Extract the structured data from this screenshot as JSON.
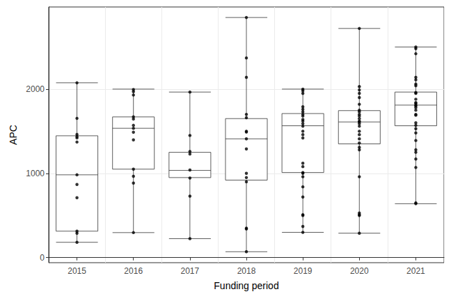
{
  "chart_data": {
    "type": "boxplot",
    "xlabel": "Funding period",
    "ylabel": "APC",
    "categories": [
      "2015",
      "2016",
      "2017",
      "2018",
      "2019",
      "2020",
      "2021"
    ],
    "boxes": [
      [
        182,
        314,
        983,
        1446,
        2075
      ],
      [
        297,
        1050,
        1535,
        1670,
        2000
      ],
      [
        225,
        950,
        1035,
        1250,
        1965
      ],
      [
        70,
        920,
        1410,
        1650,
        2850
      ],
      [
        300,
        1010,
        1565,
        1710,
        2000
      ],
      [
        290,
        1350,
        1610,
        1745,
        2720
      ],
      [
        640,
        1565,
        1810,
        1965,
        2500
      ]
    ],
    "points": [
      [
        2075,
        1653,
        1463,
        1438,
        1421,
        1372,
        983,
        868,
        711,
        314,
        289,
        182
      ],
      [
        1995,
        1970,
        1930,
        1670,
        1645,
        1570,
        1535,
        1488,
        1397,
        1050,
        965,
        885,
        297
      ],
      [
        1965,
        1450,
        1260,
        1230,
        1040,
        945,
        730,
        225
      ],
      [
        2850,
        2370,
        2140,
        1700,
        1660,
        1500,
        1490,
        1410,
        1290,
        1000,
        950,
        900,
        350,
        340,
        70
      ],
      [
        2000,
        1980,
        1950,
        1790,
        1760,
        1730,
        1700,
        1680,
        1640,
        1620,
        1590,
        1560,
        1500,
        1460,
        1420,
        1120,
        1080,
        1010,
        1000,
        960,
        840,
        720,
        510,
        500,
        370,
        300
      ],
      [
        2720,
        2030,
        1990,
        1950,
        1900,
        1820,
        1750,
        1730,
        1700,
        1680,
        1650,
        1620,
        1610,
        1590,
        1560,
        1500,
        1460,
        1410,
        1360,
        1310,
        1280,
        960,
        530,
        510,
        500,
        290
      ],
      [
        2500,
        2480,
        2420,
        2140,
        2110,
        2060,
        2040,
        1960,
        1950,
        1880,
        1840,
        1830,
        1810,
        1800,
        1780,
        1750,
        1700,
        1690,
        1600,
        1570,
        1530,
        1480,
        1390,
        1280,
        1250,
        1170,
        1070,
        650,
        640
      ]
    ],
    "color": "#333333",
    "ylim": [
      -60,
      2975
    ],
    "yticks": [
      0,
      1000,
      2000
    ],
    "grid": true
  }
}
